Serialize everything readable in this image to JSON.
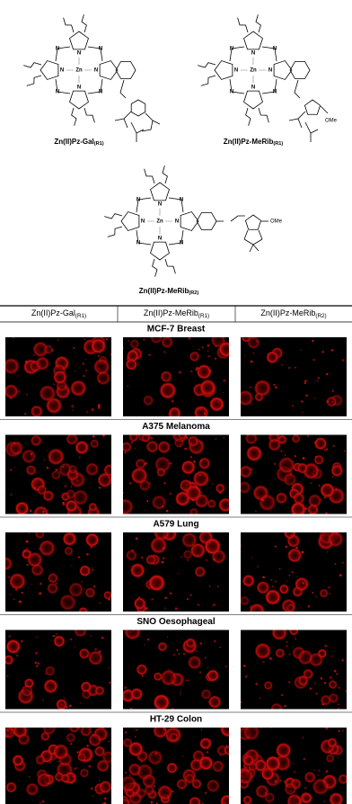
{
  "structures": [
    {
      "name": {
        "main": "Zn(II)Pz-Gal",
        "sub": "(R1)"
      },
      "metal": "Zn",
      "nitrogen": "N"
    },
    {
      "name": {
        "main": "Zn(II)Pz-MeRib",
        "sub": "(R1)"
      },
      "metal": "Zn",
      "nitrogen": "N",
      "substituent": "OMe"
    },
    {
      "name": {
        "main": "Zn(II)Pz-MeRib",
        "sub": "(R2)"
      },
      "metal": "Zn",
      "nitrogen": "N",
      "substituent": "OMe"
    }
  ],
  "table": {
    "columns": [
      {
        "main": "Zn(II)Pz-Gal",
        "sub": "(R1)"
      },
      {
        "main": "Zn(II)Pz-MeRib",
        "sub": "(R1)"
      },
      {
        "main": "Zn(II)Pz-MeRib",
        "sub": "(R2)"
      }
    ],
    "rows": [
      {
        "cell_line": "MCF-7 Breast"
      },
      {
        "cell_line": "A375 Melanoma"
      },
      {
        "cell_line": "A579 Lung"
      },
      {
        "cell_line": "SNO Oesophageal"
      },
      {
        "cell_line": "HT-29 Colon"
      }
    ]
  }
}
